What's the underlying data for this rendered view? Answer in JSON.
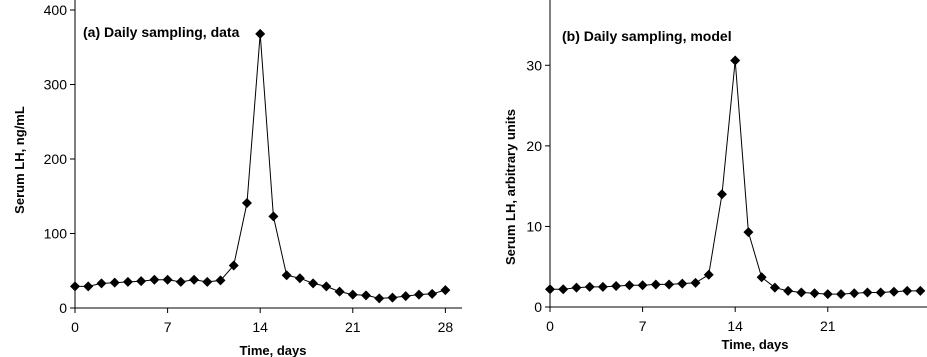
{
  "chart_data": [
    {
      "type": "line",
      "title": "(a) Daily sampling, data",
      "xlabel": "Time, days",
      "ylabel": "Serum LH, ng/mL",
      "xlim": [
        0,
        28.5
      ],
      "ylim": [
        0,
        400
      ],
      "xticks": [
        0,
        7,
        14,
        21,
        28
      ],
      "yticks": [
        0,
        100,
        200,
        300,
        400
      ],
      "grid": false,
      "series": [
        {
          "x": [
            0,
            1,
            2,
            3,
            4,
            5,
            6,
            7,
            8,
            9,
            10,
            11,
            12,
            13,
            14,
            15,
            16,
            17,
            18,
            19,
            20,
            21,
            22,
            23,
            24,
            25,
            26,
            27,
            28
          ],
          "values": [
            29,
            29,
            33,
            34,
            35,
            36,
            38,
            38,
            35,
            38,
            35,
            37,
            57,
            141,
            368,
            123,
            44,
            40,
            33,
            29,
            22,
            18,
            17,
            13,
            14,
            16,
            18,
            19,
            24
          ]
        }
      ]
    },
    {
      "type": "line",
      "title": "(b) Daily sampling, model",
      "xlabel": "Time, days",
      "ylabel": "Serum LH, arbitrary units",
      "xlim": [
        0,
        28.5
      ],
      "ylim": [
        0,
        35
      ],
      "xticks": [
        0,
        7,
        14,
        21
      ],
      "yticks": [
        0,
        10,
        20,
        30
      ],
      "grid": false,
      "series": [
        {
          "x": [
            0,
            1,
            2,
            3,
            4,
            5,
            6,
            7,
            8,
            9,
            10,
            11,
            12,
            13,
            14,
            15,
            16,
            17,
            18,
            19,
            20,
            21,
            22,
            23,
            24,
            25,
            26,
            27,
            28
          ],
          "values": [
            2.2,
            2.2,
            2.4,
            2.5,
            2.5,
            2.6,
            2.7,
            2.7,
            2.8,
            2.8,
            2.9,
            3.0,
            4.0,
            14.0,
            30.6,
            9.3,
            3.7,
            2.4,
            2.0,
            1.8,
            1.7,
            1.6,
            1.6,
            1.7,
            1.8,
            1.8,
            1.9,
            2.0,
            2.0
          ]
        }
      ]
    }
  ]
}
